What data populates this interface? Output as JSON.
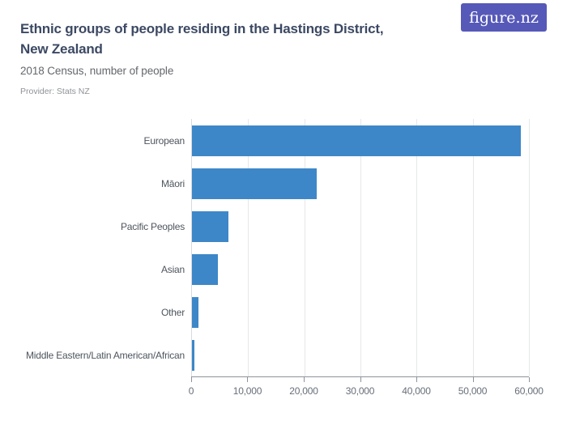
{
  "header": {
    "title_lines": [
      "Ethnic groups of people residing in the Hastings District,",
      "New Zealand"
    ],
    "subtitle": "2018 Census, number of people",
    "provider": "Provider: Stats NZ",
    "logo_text": "figure.nz"
  },
  "colors": {
    "bar": "#3d87c8",
    "title_text": "#3c4963",
    "logo_background": "#5659b8",
    "gridline": "#e6e7e9",
    "axis_line": "#8d939c",
    "category_label": "#4e555e",
    "tick_label": "#686e79"
  },
  "chart_data": {
    "type": "bar",
    "orientation": "horizontal",
    "title": "Ethnic groups of people residing in the Hastings District, New Zealand",
    "subtitle": "2018 Census, number of people",
    "provider": "Provider: Stats NZ",
    "categories": [
      "European",
      "Māori",
      "Pacific Peoples",
      "Asian",
      "Other",
      "Middle Eastern/Latin American/African"
    ],
    "values": [
      58500,
      22200,
      6500,
      4600,
      1200,
      500
    ],
    "xlim": [
      0,
      60000
    ],
    "x_tick_values": [
      0,
      10000,
      20000,
      30000,
      40000,
      50000,
      60000
    ],
    "x_tick_labels": [
      "0",
      "10,000",
      "20,000",
      "30,000",
      "40,000",
      "50,000",
      "60,000"
    ],
    "grid": "vertical",
    "legend": false,
    "ylabel": "",
    "xlabel": ""
  }
}
